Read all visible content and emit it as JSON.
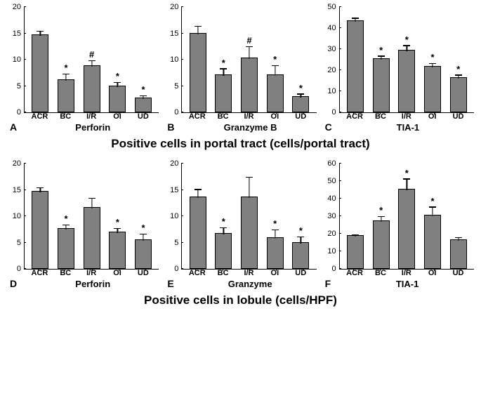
{
  "row_titles": {
    "top": "Positive cells in portal tract (cells/portal tract)",
    "bottom": "Positive cells in lobule (cells/HPF)"
  },
  "bar_color": "#808080",
  "bar_border": "#000000",
  "axis_color": "#000000",
  "text_color": "#000000",
  "categories": [
    "ACR",
    "BC",
    "I/R",
    "OI",
    "UD"
  ],
  "panels": [
    {
      "id": "A",
      "marker": "Perforin",
      "ylim": [
        0,
        20
      ],
      "ytick_step": 5,
      "values": [
        14.5,
        6.0,
        8.7,
        4.8,
        2.6
      ],
      "errors": [
        0.8,
        1.2,
        1.0,
        0.8,
        0.5
      ],
      "sig": [
        "",
        "*",
        "#",
        "*",
        "*"
      ]
    },
    {
      "id": "B",
      "marker": "Granzyme B",
      "ylim": [
        0,
        20
      ],
      "ytick_step": 5,
      "values": [
        14.8,
        7.0,
        10.2,
        7.0,
        2.8
      ],
      "errors": [
        1.5,
        1.2,
        2.2,
        1.8,
        0.6
      ],
      "sig": [
        "",
        "*",
        "#",
        "*",
        "*"
      ]
    },
    {
      "id": "C",
      "marker": "TIA-1",
      "ylim": [
        0,
        50
      ],
      "ytick_step": 10,
      "values": [
        43,
        25,
        29,
        21.5,
        16
      ],
      "errors": [
        1.5,
        1.5,
        2.5,
        1.5,
        1.5
      ],
      "sig": [
        "",
        "*",
        "*",
        "*",
        "*"
      ]
    },
    {
      "id": "D",
      "marker": "Perforin",
      "ylim": [
        0,
        20
      ],
      "ytick_step": 5,
      "values": [
        14.5,
        7.5,
        11.5,
        6.8,
        5.3
      ],
      "errors": [
        0.8,
        0.8,
        1.8,
        0.8,
        1.2
      ],
      "sig": [
        "",
        "*",
        "",
        "*",
        "*"
      ]
    },
    {
      "id": "E",
      "marker": "Granzyme",
      "ylim": [
        0,
        20
      ],
      "ytick_step": 5,
      "values": [
        13.5,
        6.5,
        13.5,
        5.8,
        4.8
      ],
      "errors": [
        1.5,
        1.2,
        3.8,
        1.5,
        1.2
      ],
      "sig": [
        "",
        "*",
        "",
        "*",
        "*"
      ]
    },
    {
      "id": "F",
      "marker": "TIA-1",
      "ylim": [
        0,
        60
      ],
      "ytick_step": 10,
      "values": [
        18.5,
        27,
        45,
        30,
        16
      ],
      "errors": [
        0.8,
        2.5,
        6,
        5,
        1.5
      ],
      "sig": [
        "",
        "*",
        "*",
        "*",
        ""
      ]
    }
  ]
}
